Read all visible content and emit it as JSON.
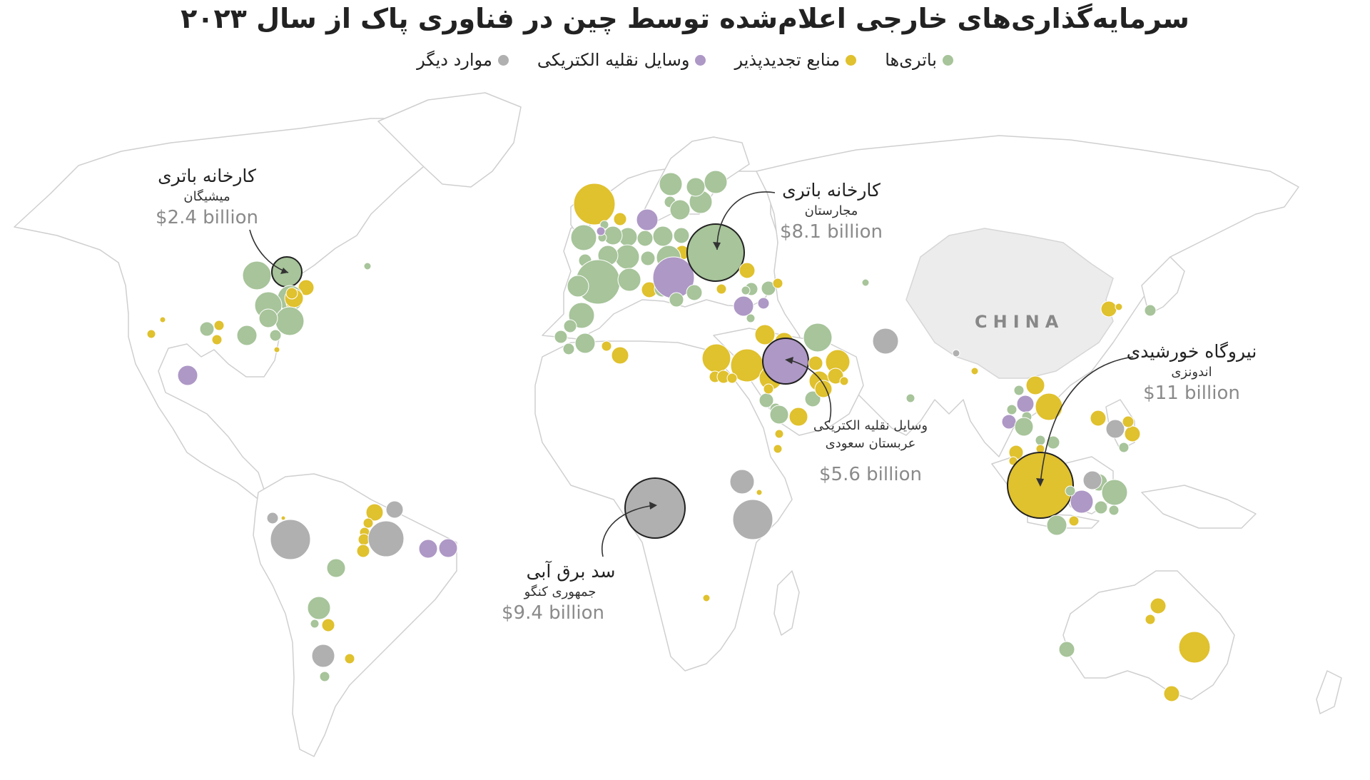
{
  "title": "سرمایه‌گذاری‌های خارجی اعلام‌شده توسط چین در فناوری پاک از سال ۲۰۲۳",
  "legend": [
    {
      "label": "باتری‌ها",
      "color": "#a7c49a"
    },
    {
      "label": "منابع تجدیدپذیر",
      "color": "#e0c12e"
    },
    {
      "label": "وسایل نقلیه الکتریکی",
      "color": "#ae98c6"
    },
    {
      "label": "موارد دیگر",
      "color": "#b0b0b0"
    }
  ],
  "colors": {
    "battery": "#a7c49a",
    "renewable": "#e0c12e",
    "ev": "#ae98c6",
    "other": "#b0b0b0",
    "land": "#ffffff",
    "china_fill": "#ececec",
    "border": "#cfcfcf"
  },
  "country_label": "CHINA",
  "annotations": {
    "michigan": {
      "title": "کارخانه باتری",
      "sub": "میشیگان",
      "value": "$2.4 billion"
    },
    "hungary": {
      "title": "کارخانه باتری",
      "sub": "مجارستان",
      "value": "$8.1 billion"
    },
    "indonesia": {
      "title": "نیروگاه خورشیدی",
      "sub": "اندونزی",
      "value": "$11 billion"
    },
    "saudi": {
      "title": "وسایل نقلیه الکتریکی",
      "sub": "عربستان سعودی",
      "value": "$5.6 billion"
    },
    "congo": {
      "title": "سد برق آبی",
      "sub": "جمهوری کنگو",
      "value": "$9.4 billion"
    }
  }
}
